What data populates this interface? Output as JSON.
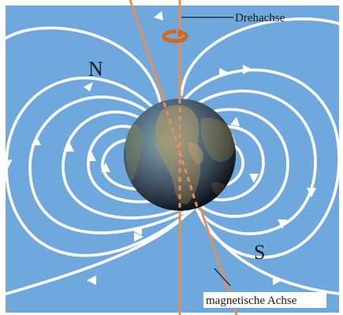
{
  "labels": {
    "rotation_axis": "Drehachse",
    "magnetic_axis": "magnetische Achse",
    "north_pole": "N",
    "south_pole": "S"
  },
  "colors": {
    "background": "#6fa8dc",
    "field_lines": "#ffffff",
    "rotation_axis": "#e0905f",
    "magnetic_axis": "#e0905f",
    "rotation_arrow": "#d2691e"
  }
}
